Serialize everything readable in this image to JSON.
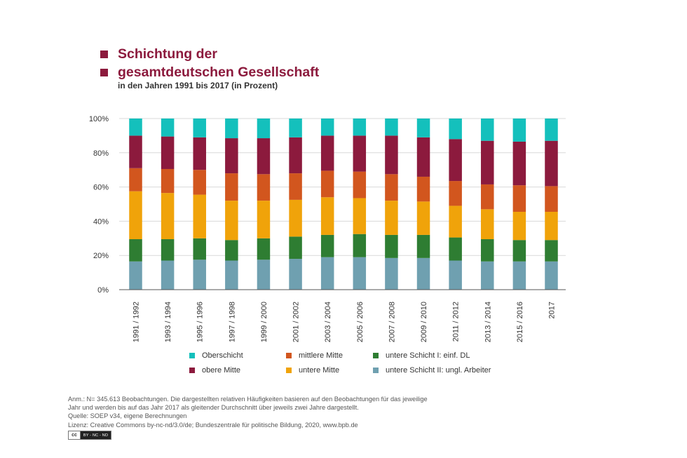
{
  "title": {
    "line1": "Schichtung der",
    "line2": "gesamtdeutschen Gesellschaft",
    "subtitle": "in den Jahren 1991 bis 2017 (in Prozent)",
    "color": "#8c1a3d"
  },
  "chart_data": {
    "type": "bar",
    "stacked": true,
    "categories": [
      "1991 / 1992",
      "1993 / 1994",
      "1995 / 1996",
      "1997 / 1998",
      "1999 / 2000",
      "2001 / 2002",
      "2003 / 2004",
      "2005 / 2006",
      "2007 / 2008",
      "2009 / 2010",
      "2011 / 2012",
      "2013 / 2014",
      "2015 / 2016",
      "2017"
    ],
    "ylim": [
      0,
      100
    ],
    "yticks": [
      0,
      20,
      40,
      60,
      80,
      100
    ],
    "ytick_labels": [
      "0%",
      "20%",
      "40%",
      "60%",
      "80%",
      "100%"
    ],
    "grid": true,
    "series": [
      {
        "name": "untere Schicht II: ungl. Arbeiter",
        "color": "#6fa0b0",
        "values": [
          16.5,
          17,
          17.5,
          17,
          17.5,
          18,
          19,
          19,
          18.5,
          18.5,
          17,
          16.5,
          16.5,
          16.5
        ]
      },
      {
        "name": "untere Schicht I: einf. DL",
        "color": "#2e7d32",
        "values": [
          13,
          12.5,
          12.5,
          12,
          12.5,
          13,
          13,
          13.5,
          13.5,
          13.5,
          13.5,
          13,
          12.5,
          12.5
        ]
      },
      {
        "name": "untere Mitte",
        "color": "#f0a30a",
        "values": [
          28,
          27,
          25.5,
          23,
          22,
          21.5,
          22,
          21,
          20,
          19.5,
          18.5,
          17.5,
          16.5,
          16.5
        ]
      },
      {
        "name": "mittlere Mitte",
        "color": "#d2561e",
        "values": [
          13.5,
          14,
          14.5,
          16,
          15.5,
          15.5,
          15.5,
          15.5,
          15.5,
          14.5,
          14.5,
          14.5,
          15.5,
          15
        ]
      },
      {
        "name": "obere Mitte",
        "color": "#8c1a3d",
        "values": [
          19,
          19,
          19,
          20.5,
          21,
          21,
          20.5,
          21,
          22.5,
          23,
          24.5,
          25.5,
          25.5,
          26.5
        ]
      },
      {
        "name": "Oberschicht",
        "color": "#14c0bc",
        "values": [
          10,
          10.5,
          11,
          11.5,
          11.5,
          11,
          10,
          10,
          10,
          11,
          12,
          13,
          13.5,
          13
        ]
      }
    ]
  },
  "legend": {
    "row1": [
      {
        "label": "Oberschicht",
        "color": "#14c0bc"
      },
      {
        "label": "mittlere Mitte",
        "color": "#d2561e"
      },
      {
        "label": "untere Schicht I: einf. DL",
        "color": "#2e7d32"
      }
    ],
    "row2": [
      {
        "label": "obere Mitte",
        "color": "#8c1a3d"
      },
      {
        "label": "untere Mitte",
        "color": "#f0a30a"
      },
      {
        "label": "untere Schicht II: ungl. Arbeiter",
        "color": "#6fa0b0"
      }
    ]
  },
  "notes": {
    "anm_line1": "Anm.: N= 345.613 Beobachtungen. Die dargestellten relativen Häufigkeiten basieren auf den Beobachtungen für das jeweilige",
    "anm_line2": "Jahr und werden bis auf das Jahr 2017 als gleitender Durchschnitt über jeweils zwei Jahre dargestellt.",
    "quelle": "Quelle:   SOEP v34, eigene Berechnungen",
    "lizenz": "Lizenz:   Creative Commons by-nc-nd/3.0/de; Bundeszentrale für politische Bildung, 2020, www.bpb.de"
  },
  "license_badge": {
    "logo": "cc",
    "text": "BY - NC - ND"
  }
}
